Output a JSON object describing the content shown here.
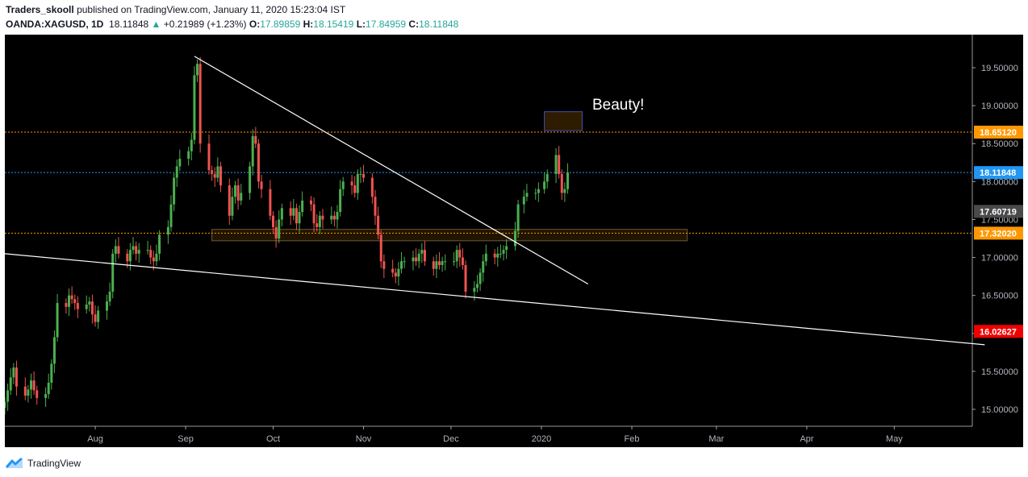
{
  "header": {
    "author": "Traders_skooll",
    "published_text": "published on TradingView.com, January 11, 2020 15:23:04 IST",
    "symbol": "OANDA:XAGUSD, 1D",
    "last": "18.11848",
    "arrow": "▲",
    "change": "+0.21989 (+1.23%)",
    "o_label": "O:",
    "o_value": "17.89859",
    "h_label": "H:",
    "h_value": "18.15419",
    "l_label": "L:",
    "l_value": "17.84959",
    "c_label": "C:",
    "c_value": "18.11848"
  },
  "annotation": "Beauty!",
  "price_scale": {
    "ticks": [
      "19.50000",
      "19.00000",
      "18.50000",
      "18.00000",
      "17.50000",
      "17.00000",
      "16.50000",
      "16.00000",
      "15.50000",
      "15.00000"
    ],
    "labels": [
      {
        "text": "18.65120",
        "color": "#ff9800"
      },
      {
        "text": "18.11848",
        "color": "#2196f3"
      },
      {
        "text": "17.60719",
        "color": "#4a4a4a"
      },
      {
        "text": "17.32020",
        "color": "#ff9800"
      },
      {
        "text": "16.02627",
        "color": "#f00000"
      }
    ]
  },
  "time_axis": [
    "Aug",
    "Sep",
    "Oct",
    "Nov",
    "Dec",
    "2020",
    "Feb",
    "Mar",
    "Apr",
    "May"
  ],
  "footer": {
    "brand": "TradingView",
    "logo_icon": "tradingview-logo-icon"
  },
  "chart_data": {
    "type": "candlestick",
    "symbol": "OANDA:XAGUSD",
    "interval": "1D",
    "y_range": [
      14.8,
      19.8
    ],
    "colors": {
      "up": "#4caf50",
      "down": "#ef5350",
      "background": "#000000",
      "trendline": "#ffffff"
    },
    "horizontal_lines": [
      {
        "value": 18.6512,
        "color": "#ff9800",
        "style": "dotted"
      },
      {
        "value": 18.11848,
        "color": "#2196f3",
        "style": "dotted"
      },
      {
        "value": 17.3202,
        "color": "#ff9800",
        "style": "dotted"
      }
    ],
    "zones": [
      {
        "from": "2019-09-10",
        "to": "2020-02-20",
        "low": 17.22,
        "high": 17.37
      },
      {
        "from": "2020-01-02",
        "to": "2020-01-15",
        "low": 18.67,
        "high": 18.92
      }
    ],
    "trendlines": [
      {
        "from": {
          "date": "2019-09-04",
          "price": 19.65
        },
        "to": {
          "date": "2020-01-17",
          "price": 16.65
        }
      },
      {
        "from": {
          "date": "2019-07-01",
          "price": 17.05
        },
        "to": {
          "date": "2020-06-01",
          "price": 15.85
        }
      }
    ],
    "closes": [
      {
        "d": "2019-07-01",
        "c": 15.1
      },
      {
        "d": "2019-07-02",
        "c": 15.25
      },
      {
        "d": "2019-07-03",
        "c": 15.42
      },
      {
        "d": "2019-07-04",
        "c": 15.55
      },
      {
        "d": "2019-07-05",
        "c": 15.3
      },
      {
        "d": "2019-07-08",
        "c": 15.18
      },
      {
        "d": "2019-07-09",
        "c": 15.26
      },
      {
        "d": "2019-07-10",
        "c": 15.38
      },
      {
        "d": "2019-07-11",
        "c": 15.25
      },
      {
        "d": "2019-07-12",
        "c": 15.15
      },
      {
        "d": "2019-07-15",
        "c": 15.2
      },
      {
        "d": "2019-07-16",
        "c": 15.35
      },
      {
        "d": "2019-07-17",
        "c": 15.6
      },
      {
        "d": "2019-07-18",
        "c": 15.95
      },
      {
        "d": "2019-07-19",
        "c": 16.4
      },
      {
        "d": "2019-07-22",
        "c": 16.35
      },
      {
        "d": "2019-07-23",
        "c": 16.5
      },
      {
        "d": "2019-07-24",
        "c": 16.45
      },
      {
        "d": "2019-07-25",
        "c": 16.4
      },
      {
        "d": "2019-07-26",
        "c": 16.32
      },
      {
        "d": "2019-07-29",
        "c": 16.38
      },
      {
        "d": "2019-07-30",
        "c": 16.42
      },
      {
        "d": "2019-07-31",
        "c": 16.25
      },
      {
        "d": "2019-08-01",
        "c": 16.15
      },
      {
        "d": "2019-08-02",
        "c": 16.3
      },
      {
        "d": "2019-08-05",
        "c": 16.42
      },
      {
        "d": "2019-08-06",
        "c": 16.55
      },
      {
        "d": "2019-08-07",
        "c": 17.05
      },
      {
        "d": "2019-08-08",
        "c": 17.15
      },
      {
        "d": "2019-08-09",
        "c": 17.05
      },
      {
        "d": "2019-08-12",
        "c": 16.95
      },
      {
        "d": "2019-08-13",
        "c": 17.1
      },
      {
        "d": "2019-08-14",
        "c": 17.15
      },
      {
        "d": "2019-08-15",
        "c": 17.05
      },
      {
        "d": "2019-08-16",
        "c": 17.1
      },
      {
        "d": "2019-08-19",
        "c": 17.1
      },
      {
        "d": "2019-08-20",
        "c": 17.0
      },
      {
        "d": "2019-08-21",
        "c": 16.95
      },
      {
        "d": "2019-08-22",
        "c": 17.05
      },
      {
        "d": "2019-08-23",
        "c": 17.3
      },
      {
        "d": "2019-08-26",
        "c": 17.4
      },
      {
        "d": "2019-08-27",
        "c": 17.7
      },
      {
        "d": "2019-08-28",
        "c": 18.05
      },
      {
        "d": "2019-08-29",
        "c": 18.2
      },
      {
        "d": "2019-08-30",
        "c": 18.3
      },
      {
        "d": "2019-09-02",
        "c": 18.4
      },
      {
        "d": "2019-09-03",
        "c": 18.55
      },
      {
        "d": "2019-09-04",
        "c": 19.4
      },
      {
        "d": "2019-09-05",
        "c": 19.55
      },
      {
        "d": "2019-09-06",
        "c": 18.5
      },
      {
        "d": "2019-09-09",
        "c": 18.15
      },
      {
        "d": "2019-09-10",
        "c": 18.1
      },
      {
        "d": "2019-09-11",
        "c": 18.05
      },
      {
        "d": "2019-09-12",
        "c": 18.2
      },
      {
        "d": "2019-09-13",
        "c": 17.95
      },
      {
        "d": "2019-09-16",
        "c": 17.55
      },
      {
        "d": "2019-09-17",
        "c": 17.8
      },
      {
        "d": "2019-09-18",
        "c": 17.95
      },
      {
        "d": "2019-09-19",
        "c": 17.75
      },
      {
        "d": "2019-09-20",
        "c": 17.85
      },
      {
        "d": "2019-09-23",
        "c": 18.2
      },
      {
        "d": "2019-09-24",
        "c": 18.6
      },
      {
        "d": "2019-09-25",
        "c": 18.5
      },
      {
        "d": "2019-09-26",
        "c": 18.0
      },
      {
        "d": "2019-09-27",
        "c": 17.9
      },
      {
        "d": "2019-09-30",
        "c": 17.55
      },
      {
        "d": "2019-10-01",
        "c": 17.4
      },
      {
        "d": "2019-10-02",
        "c": 17.25
      },
      {
        "d": "2019-10-03",
        "c": 17.5
      },
      {
        "d": "2019-10-04",
        "c": 17.65
      },
      {
        "d": "2019-10-07",
        "c": 17.55
      },
      {
        "d": "2019-10-08",
        "c": 17.65
      },
      {
        "d": "2019-10-09",
        "c": 17.45
      },
      {
        "d": "2019-10-10",
        "c": 17.6
      },
      {
        "d": "2019-10-11",
        "c": 17.75
      },
      {
        "d": "2019-10-14",
        "c": 17.7
      },
      {
        "d": "2019-10-15",
        "c": 17.45
      },
      {
        "d": "2019-10-16",
        "c": 17.4
      },
      {
        "d": "2019-10-17",
        "c": 17.55
      },
      {
        "d": "2019-10-18",
        "c": 17.5
      },
      {
        "d": "2019-10-21",
        "c": 17.55
      },
      {
        "d": "2019-10-22",
        "c": 17.5
      },
      {
        "d": "2019-10-23",
        "c": 17.6
      },
      {
        "d": "2019-10-24",
        "c": 17.9
      },
      {
        "d": "2019-10-25",
        "c": 18.0
      },
      {
        "d": "2019-10-28",
        "c": 17.95
      },
      {
        "d": "2019-10-29",
        "c": 17.85
      },
      {
        "d": "2019-10-30",
        "c": 18.1
      },
      {
        "d": "2019-10-31",
        "c": 18.1
      },
      {
        "d": "2019-11-01",
        "c": 18.05
      },
      {
        "d": "2019-11-04",
        "c": 17.8
      },
      {
        "d": "2019-11-05",
        "c": 17.55
      },
      {
        "d": "2019-11-06",
        "c": 17.3
      },
      {
        "d": "2019-11-07",
        "c": 16.95
      },
      {
        "d": "2019-11-08",
        "c": 16.85
      },
      {
        "d": "2019-11-11",
        "c": 16.8
      },
      {
        "d": "2019-11-12",
        "c": 16.75
      },
      {
        "d": "2019-11-13",
        "c": 16.85
      },
      {
        "d": "2019-11-14",
        "c": 16.95
      },
      {
        "d": "2019-11-15",
        "c": 16.95
      },
      {
        "d": "2019-11-18",
        "c": 17.0
      },
      {
        "d": "2019-11-19",
        "c": 16.95
      },
      {
        "d": "2019-11-20",
        "c": 17.05
      },
      {
        "d": "2019-11-21",
        "c": 17.1
      },
      {
        "d": "2019-11-22",
        "c": 16.95
      },
      {
        "d": "2019-11-25",
        "c": 16.85
      },
      {
        "d": "2019-11-26",
        "c": 16.95
      },
      {
        "d": "2019-11-27",
        "c": 16.9
      },
      {
        "d": "2019-11-28",
        "c": 16.95
      },
      {
        "d": "2019-11-29",
        "c": 16.95
      },
      {
        "d": "2019-12-02",
        "c": 16.95
      },
      {
        "d": "2019-12-03",
        "c": 17.1
      },
      {
        "d": "2019-12-04",
        "c": 17.0
      },
      {
        "d": "2019-12-05",
        "c": 16.9
      },
      {
        "d": "2019-12-06",
        "c": 16.55
      },
      {
        "d": "2019-12-09",
        "c": 16.6
      },
      {
        "d": "2019-12-10",
        "c": 16.65
      },
      {
        "d": "2019-12-11",
        "c": 16.8
      },
      {
        "d": "2019-12-12",
        "c": 16.95
      },
      {
        "d": "2019-12-13",
        "c": 17.05
      },
      {
        "d": "2019-12-16",
        "c": 17.0
      },
      {
        "d": "2019-12-17",
        "c": 17.05
      },
      {
        "d": "2019-12-18",
        "c": 17.05
      },
      {
        "d": "2019-12-19",
        "c": 17.1
      },
      {
        "d": "2019-12-20",
        "c": 17.15
      },
      {
        "d": "2019-12-23",
        "c": 17.35
      },
      {
        "d": "2019-12-24",
        "c": 17.7
      },
      {
        "d": "2019-12-26",
        "c": 17.8
      },
      {
        "d": "2019-12-27",
        "c": 17.85
      },
      {
        "d": "2019-12-30",
        "c": 17.85
      },
      {
        "d": "2019-12-31",
        "c": 17.9
      },
      {
        "d": "2020-01-02",
        "c": 18.0
      },
      {
        "d": "2020-01-03",
        "c": 18.1
      },
      {
        "d": "2020-01-06",
        "c": 18.35
      },
      {
        "d": "2020-01-07",
        "c": 18.1
      },
      {
        "d": "2020-01-08",
        "c": 17.85
      },
      {
        "d": "2020-01-09",
        "c": 17.9
      },
      {
        "d": "2020-01-10",
        "c": 18.12
      }
    ]
  }
}
